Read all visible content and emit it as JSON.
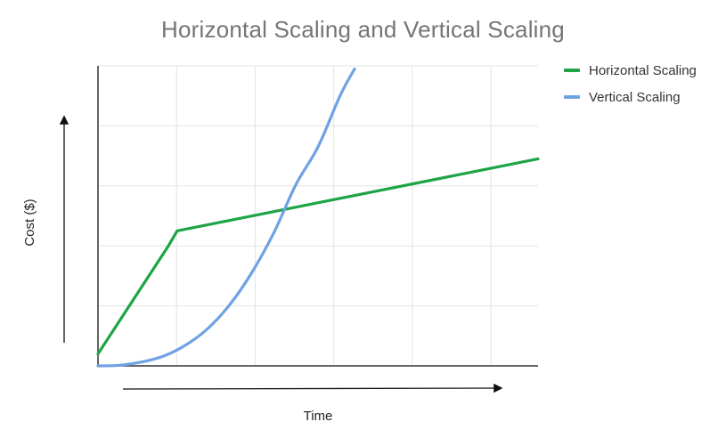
{
  "chart_data": {
    "type": "line",
    "title": "Horizontal Scaling and Vertical Scaling",
    "xlabel": "Time",
    "ylabel": "Cost ($)",
    "xlim": [
      0,
      10
    ],
    "ylim": [
      0,
      100
    ],
    "grid": true,
    "legend_position": "top-right",
    "series": [
      {
        "name": "Horizontal Scaling",
        "color": "#1ea446",
        "x": [
          0,
          1.6,
          1.8,
          10
        ],
        "y": [
          4,
          40,
          45,
          69
        ]
      },
      {
        "name": "Vertical Scaling",
        "color": "#6ea2e4",
        "x": [
          0,
          0.5,
          1.0,
          1.5,
          2.0,
          2.5,
          3.0,
          3.5,
          4.0,
          4.5,
          5.0,
          5.5,
          5.83
        ],
        "y": [
          0,
          0.2,
          1.3,
          3.3,
          7.0,
          12.5,
          20.5,
          31.2,
          44.5,
          60.5,
          73.0,
          90.0,
          99
        ]
      }
    ]
  }
}
